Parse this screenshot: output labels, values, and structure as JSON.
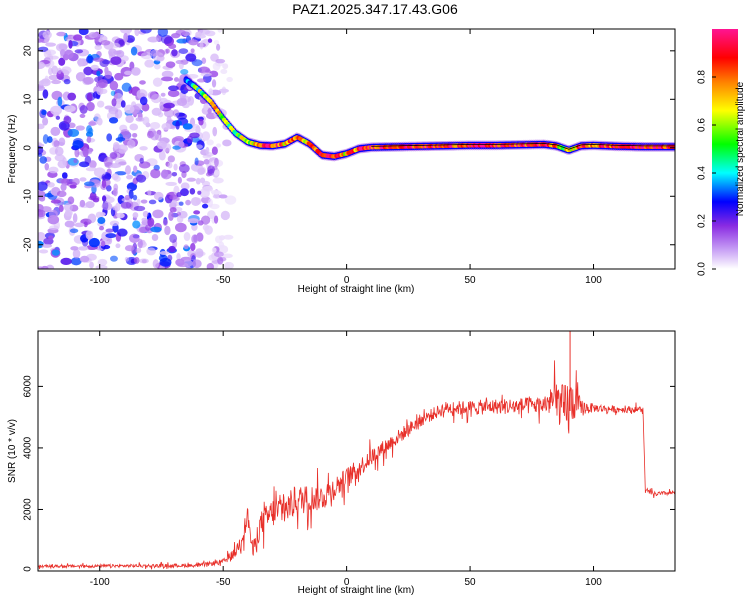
{
  "title": "PAZ1.2025.347.17.43.G06",
  "colors": {
    "snr_line": "#e8302a",
    "scatter": "#7a1df0",
    "axis": "#000000"
  },
  "chart_data": [
    {
      "type": "heatmap",
      "name": "spectrogram",
      "title": "PAZ1.2025.347.17.43.G06",
      "xlabel": "Height of straight line (km)",
      "ylabel": "Frequency (Hz)",
      "xlim": [
        -125,
        133
      ],
      "ylim": [
        -25,
        24.5
      ],
      "xticks": [
        -100,
        -50,
        0,
        50,
        100
      ],
      "yticks": [
        -20,
        -10,
        0,
        10,
        20
      ],
      "colorbar": {
        "label": "Normalized spectral amplitude",
        "range": [
          0,
          1
        ],
        "ticks": [
          "0.0",
          "0.2",
          "0.4",
          "0.6",
          "0.8"
        ],
        "colors": [
          "#ffffff",
          "#8a2be2",
          "#0000ff",
          "#00ffff",
          "#00ff00",
          "#ffff00",
          "#ff8000",
          "#ff0000",
          "#ff1493"
        ]
      },
      "ridge": {
        "x": [
          -65,
          -60,
          -55,
          -50,
          -45,
          -40,
          -35,
          -30,
          -25,
          -20,
          -15,
          -10,
          -5,
          0,
          5,
          10,
          20,
          30,
          40,
          50,
          60,
          70,
          80,
          85,
          90,
          95,
          100,
          110,
          120,
          133
        ],
        "y": [
          14,
          12,
          9.5,
          6,
          3,
          1.2,
          0.5,
          0.4,
          0.8,
          2.2,
          0.8,
          -1.5,
          -1.8,
          -1.2,
          -0.2,
          0.1,
          0.2,
          0.3,
          0.4,
          0.5,
          0.5,
          0.6,
          0.7,
          0.4,
          -0.5,
          0.4,
          0.5,
          0.3,
          0.2,
          0.2
        ],
        "amplitude": [
          0.3,
          0.55,
          0.7,
          0.6,
          0.55,
          0.6,
          0.85,
          0.9,
          0.75,
          0.8,
          0.7,
          0.85,
          0.9,
          0.7,
          0.85,
          0.9,
          0.95,
          0.9,
          0.85,
          0.95,
          0.9,
          0.85,
          0.95,
          0.7,
          0.6,
          0.85,
          0.8,
          0.9,
          0.95,
          0.85
        ]
      },
      "noise_region_x": [
        -125,
        -50
      ],
      "noise_amplitude": [
        0.05,
        0.35
      ]
    },
    {
      "type": "line",
      "name": "snr",
      "xlabel": "Height of straight line (km)",
      "ylabel": "SNR (10 * v/v)",
      "xlim": [
        -125,
        133
      ],
      "ylim": [
        0,
        7800
      ],
      "xticks": [
        -100,
        -50,
        0,
        50,
        100
      ],
      "yticks": [
        0,
        2000,
        4000,
        6000
      ],
      "envelope": {
        "x": [
          -125,
          -60,
          -50,
          -45,
          -42,
          -40,
          -38,
          -35,
          -30,
          -25,
          -20,
          -10,
          0,
          10,
          20,
          30,
          40,
          50,
          60,
          70,
          80,
          85,
          88,
          90,
          92,
          95,
          100,
          110,
          120,
          121,
          125,
          133
        ],
        "y": [
          150,
          180,
          300,
          600,
          1200,
          1800,
          600,
          1500,
          1900,
          2000,
          2300,
          2400,
          3000,
          3700,
          4300,
          4900,
          5300,
          5300,
          5350,
          5350,
          5400,
          5600,
          5200,
          5300,
          5500,
          5300,
          5300,
          5250,
          5250,
          2600,
          2500,
          2550
        ],
        "noise": [
          60,
          80,
          120,
          250,
          400,
          500,
          400,
          600,
          700,
          700,
          700,
          600,
          500,
          400,
          350,
          300,
          300,
          350,
          350,
          400,
          400,
          900,
          1200,
          1500,
          900,
          400,
          200,
          150,
          150,
          100,
          100,
          100
        ]
      }
    }
  ]
}
